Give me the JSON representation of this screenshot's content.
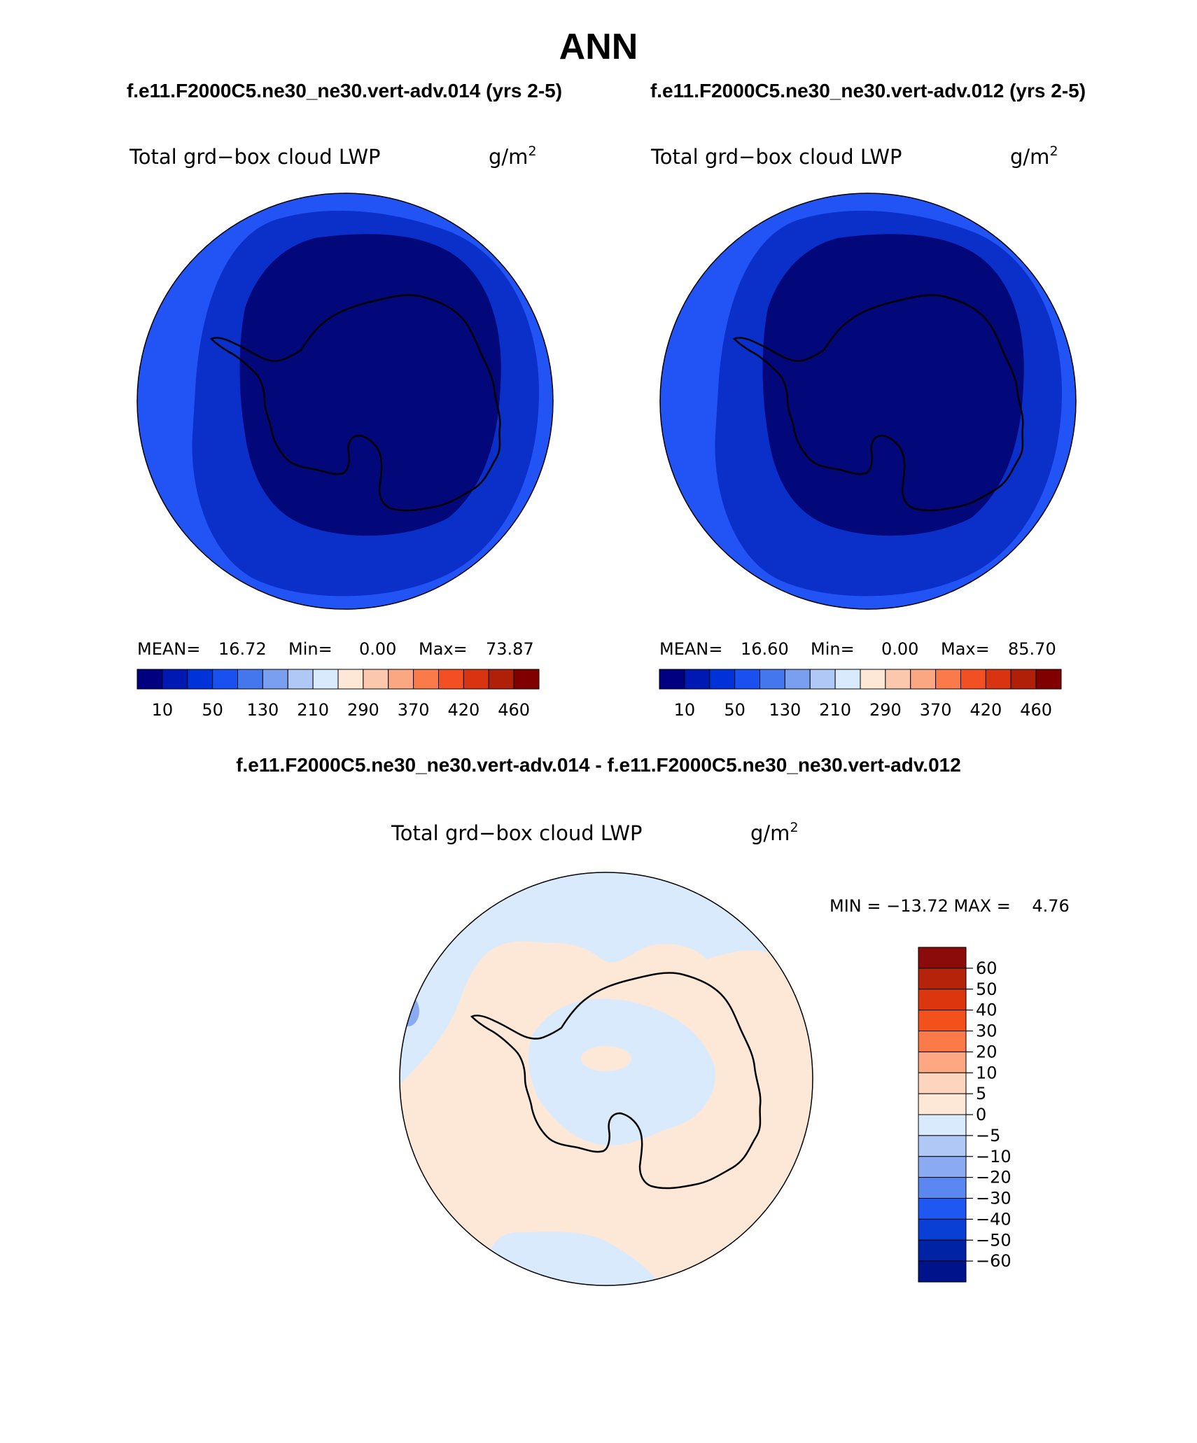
{
  "figure": {
    "title": "ANN",
    "top_left_case": "f.e11.F2000C5.ne30_ne30.vert-adv.014 (yrs 2-5)",
    "top_right_case": "f.e11.F2000C5.ne30_ne30.vert-adv.012 (yrs 2-5)",
    "diff_title": "f.e11.F2000C5.ne30_ne30.vert-adv.014 - f.e11.F2000C5.ne30_ne30.vert-adv.012"
  },
  "panels": {
    "left": {
      "variable": "Total grd−box cloud LWP",
      "units": "g/m",
      "units_sup": "2",
      "mean_label": "MEAN=",
      "mean": "16.72",
      "min_label": "Min=",
      "min": "0.00",
      "max_label": "Max=",
      "max": "73.87"
    },
    "right": {
      "variable": "Total grd−box cloud LWP",
      "units": "g/m",
      "units_sup": "2",
      "mean_label": "MEAN=",
      "mean": "16.60",
      "min_label": "Min=",
      "min": "0.00",
      "max_label": "Max=",
      "max": "85.70"
    },
    "diff": {
      "variable": "Total grd−box cloud LWP",
      "units": "g/m",
      "units_sup": "2",
      "minmax": "MIN = −13.72 MAX =    4.76"
    }
  },
  "colorbar_abs": {
    "colors": [
      "#000080",
      "#0019b3",
      "#0032d9",
      "#1a4ff0",
      "#4477ee",
      "#7a9ff0",
      "#b0c8f5",
      "#d9eafc",
      "#fde8d8",
      "#fcc8ad",
      "#fba882",
      "#fa7a4a",
      "#f24f22",
      "#d83412",
      "#b02008",
      "#800000"
    ],
    "tick_labels": [
      "10",
      "50",
      "130",
      "210",
      "290",
      "370",
      "420",
      "460"
    ]
  },
  "colorbar_diff": {
    "colors": [
      "#8b0a0a",
      "#b5230b",
      "#dc360f",
      "#f2511c",
      "#fc7a47",
      "#fda882",
      "#fdd5bf",
      "#fde8d8",
      "#d9eafc",
      "#b0c8f5",
      "#8aaaf2",
      "#5a88f0",
      "#1f57f2",
      "#0a3fd6",
      "#0023a6",
      "#00138a"
    ],
    "tick_labels": [
      "60",
      "50",
      "40",
      "30",
      "20",
      "10",
      "5",
      "0",
      "−5",
      "−10",
      "−20",
      "−30",
      "−40",
      "−50",
      "−60"
    ]
  },
  "map_colors": {
    "band_outer": "#2253f5",
    "band_middle": "#0b2fc9",
    "band_inner": "#02087a",
    "diff_negative": "#d9eafc",
    "diff_positive": "#fde8d8",
    "diff_strong_negative": "#8aaaf2",
    "coastline": "#000000"
  }
}
